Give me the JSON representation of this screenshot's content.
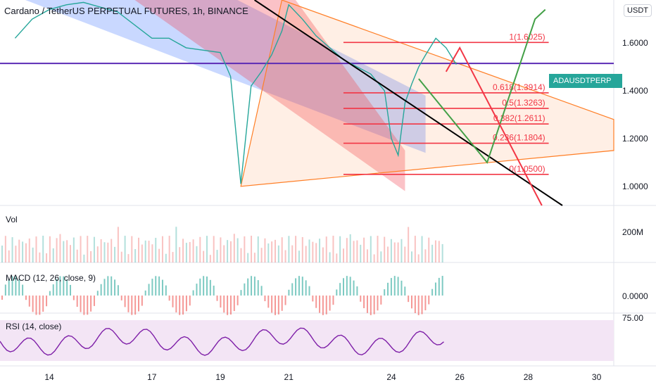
{
  "header": {
    "title": "Cardano / TetherUS PERPETUAL FUTURES, 1h, BINANCE",
    "currency": "USDT"
  },
  "colors": {
    "up": "#26a69a",
    "down": "#ef5350",
    "fib": "#f23645",
    "channel_blue": "#2962ff",
    "channel_red": "#f23645",
    "triangle": "#ff7f27",
    "trend_black": "#000000",
    "purple_line": "#5b2bb5",
    "green_path": "#43a047",
    "red_path": "#f23645",
    "rsi_line": "#7e1fa8",
    "rsi_bg": "#f3e5f5"
  },
  "price_badge": {
    "symbol": "ADAUSDTPERP",
    "value": "1.5146"
  },
  "panes": {
    "vol_label": "Vol",
    "vol_tick": "200M",
    "macd_label": "MACD (12, 26, close, 9)",
    "macd_tick": "0.0000",
    "rsi_label": "RSI (14, close)",
    "rsi_tick": "75.00"
  },
  "chart_data": {
    "type": "line",
    "title": "Cardano / TetherUS PERPETUAL FUTURES, 1h, BINANCE",
    "y_axis": {
      "ticks": [
        "1.6000",
        "1.4000",
        "1.2000",
        "1.0000"
      ],
      "range": [
        0.92,
        1.78
      ]
    },
    "x_axis": {
      "ticks": [
        "14",
        "17",
        "19",
        "21",
        "24",
        "26",
        "28",
        "30"
      ]
    },
    "fib_levels": [
      {
        "ratio": "1",
        "price": 1.6025,
        "label": "1(1.6025)"
      },
      {
        "ratio": "0.618",
        "price": 1.3914,
        "label": "0.618(1.3914)"
      },
      {
        "ratio": "0.5",
        "price": 1.3263,
        "label": "0.5(1.3263)"
      },
      {
        "ratio": "0.382",
        "price": 1.2611,
        "label": "0.382(1.2611)"
      },
      {
        "ratio": "0.236",
        "price": 1.1804,
        "label": "0.236(1.1804)"
      },
      {
        "ratio": "0",
        "price": 1.05,
        "label": "0(1.0500)"
      }
    ],
    "last_price": 1.5146,
    "price_series": [
      [
        "13",
        1.62
      ],
      [
        "13.5",
        1.7
      ],
      [
        "14",
        1.74
      ],
      [
        "14.5",
        1.76
      ],
      [
        "15",
        1.77
      ],
      [
        "16",
        1.73
      ],
      [
        "17",
        1.62
      ],
      [
        "17.5",
        1.62
      ],
      [
        "18",
        1.58
      ],
      [
        "19",
        1.56
      ],
      [
        "19.3",
        1.46
      ],
      [
        "19.6",
        1.01
      ],
      [
        "19.9",
        1.42
      ],
      [
        "20.2",
        1.48
      ],
      [
        "20.5",
        1.55
      ],
      [
        "20.8",
        1.65
      ],
      [
        "21",
        1.76
      ],
      [
        "21.4",
        1.7
      ],
      [
        "21.8",
        1.63
      ],
      [
        "22.2",
        1.58
      ],
      [
        "22.6",
        1.53
      ],
      [
        "23",
        1.5
      ],
      [
        "23.4",
        1.47
      ],
      [
        "23.8",
        1.4
      ],
      [
        "24",
        1.2
      ],
      [
        "24.2",
        1.13
      ],
      [
        "24.4",
        1.35
      ],
      [
        "24.6",
        1.43
      ],
      [
        "24.8",
        1.5
      ],
      [
        "25",
        1.55
      ],
      [
        "25.3",
        1.62
      ],
      [
        "25.6",
        1.58
      ],
      [
        "25.9",
        1.51
      ]
    ]
  }
}
